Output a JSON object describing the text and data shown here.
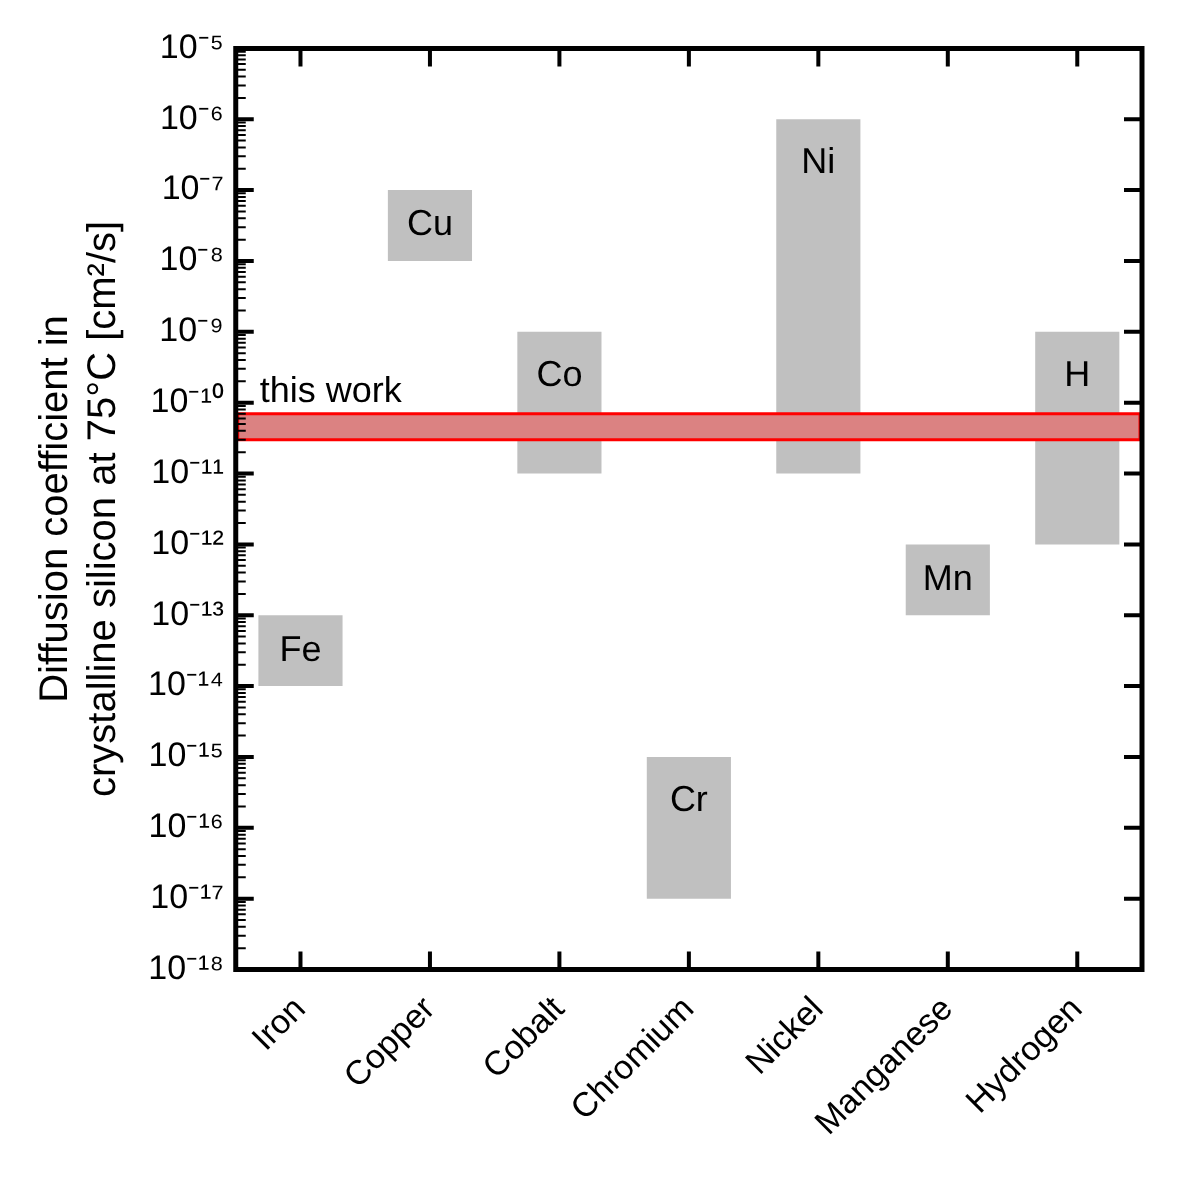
{
  "chart_data": {
    "type": "bar",
    "ylabel": "Diffusion coefficient in crystalline silicon at 75°C [cm²/s]",
    "categories": [
      "Iron",
      "Copper",
      "Cobalt",
      "Chromium",
      "Nickel",
      "Manganese",
      "Hydrogen"
    ],
    "base": [
      1e-14,
      1e-08,
      1e-11,
      1e-17,
      1e-11,
      1e-13,
      1e-12
    ],
    "values": [
      9e-14,
      9e-08,
      9.9e-10,
      9.9e-16,
      9.9999e-07,
      9e-13,
      9.99e-10
    ],
    "color": "#c0c0c0",
    "log": true,
    "grid": false,
    "legend": false,
    "ylim": [
      1e-18,
      1e-05
    ],
    "yticks": [
      {
        "value": 1e-18,
        "label": "10⁻¹⁸"
      },
      {
        "value": 1e-17,
        "label": "10⁻¹⁷"
      },
      {
        "value": 1e-16,
        "label": "10⁻¹⁶"
      },
      {
        "value": 1e-15,
        "label": "10⁻¹⁵"
      },
      {
        "value": 1e-14,
        "label": "10⁻¹⁴"
      },
      {
        "value": 1e-13,
        "label": "10⁻¹³"
      },
      {
        "value": 1e-12,
        "label": "10⁻¹²"
      },
      {
        "value": 1e-11,
        "label": "10⁻¹¹"
      },
      {
        "value": 1e-10,
        "label": "10⁻¹⁰"
      },
      {
        "value": 1e-09,
        "label": "10⁻⁹"
      },
      {
        "value": 1e-08,
        "label": "10⁻⁸"
      },
      {
        "value": 1e-07,
        "label": "10⁻⁷"
      },
      {
        "value": 1e-06,
        "label": "10⁻⁶"
      },
      {
        "value": 1e-05,
        "label": "10⁻⁵"
      }
    ],
    "bands": [
      {
        "axis": "y",
        "from": 3e-11,
        "to": 7e-11,
        "label": "this work",
        "color": "#ff0000"
      }
    ],
    "annotations": [
      "Fe",
      "Cu",
      "Co",
      "Cr",
      "Ni",
      "Mn",
      "H"
    ]
  }
}
